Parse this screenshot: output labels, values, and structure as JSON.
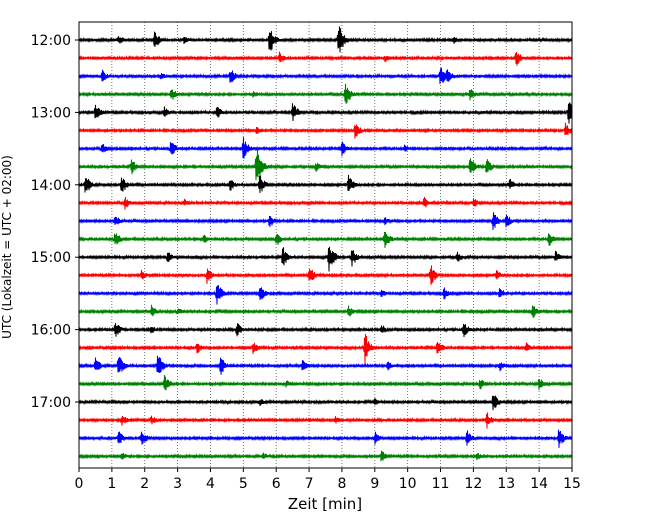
{
  "chart_data": {
    "type": "line",
    "title": "",
    "xlabel": "Zeit  [min]",
    "ylabel": "UTC (Lokalzeit = UTC + 02:00)",
    "xlim": [
      0,
      15
    ],
    "x_ticks": [
      "0",
      "1",
      "2",
      "3",
      "4",
      "5",
      "6",
      "7",
      "8",
      "9",
      "10",
      "11",
      "12",
      "13",
      "14",
      "15"
    ],
    "y_ticks": [
      {
        "label": "12:00",
        "row": 0
      },
      {
        "label": "13:00",
        "row": 4
      },
      {
        "label": "14:00",
        "row": 8
      },
      {
        "label": "15:00",
        "row": 12
      },
      {
        "label": "16:00",
        "row": 16
      },
      {
        "label": "17:00",
        "row": 20
      }
    ],
    "grid": "vertical dotted",
    "row_colors": [
      "#000000",
      "#ff0000",
      "#0000ff",
      "#008000"
    ],
    "rows": [
      {
        "start": "12:00",
        "events": [
          [
            2.3,
            0.45
          ],
          [
            5.8,
            0.7
          ],
          [
            7.9,
            0.75
          ],
          [
            1.2,
            0.25
          ],
          [
            3.2,
            0.2
          ],
          [
            11.4,
            0.2
          ]
        ]
      },
      {
        "start": "12:15",
        "events": [
          [
            6.1,
            0.3
          ],
          [
            13.3,
            0.4
          ],
          [
            9.3,
            0.2
          ]
        ]
      },
      {
        "start": "12:30",
        "events": [
          [
            0.7,
            0.3
          ],
          [
            4.6,
            0.4
          ],
          [
            11.0,
            0.55
          ],
          [
            11.2,
            0.4
          ],
          [
            2.5,
            0.2
          ]
        ]
      },
      {
        "start": "12:45",
        "events": [
          [
            2.8,
            0.35
          ],
          [
            8.1,
            0.6
          ],
          [
            11.9,
            0.3
          ],
          [
            5.3,
            0.2
          ]
        ]
      },
      {
        "start": "13:00",
        "events": [
          [
            0.5,
            0.4
          ],
          [
            6.5,
            0.45
          ],
          [
            14.9,
            0.6
          ],
          [
            4.2,
            0.3
          ],
          [
            2.6,
            0.25
          ]
        ]
      },
      {
        "start": "13:15",
        "events": [
          [
            8.4,
            0.4
          ],
          [
            14.8,
            0.35
          ],
          [
            5.4,
            0.2
          ]
        ]
      },
      {
        "start": "13:30",
        "events": [
          [
            0.7,
            0.3
          ],
          [
            2.8,
            0.4
          ],
          [
            5.0,
            0.5
          ],
          [
            8.0,
            0.35
          ],
          [
            9.9,
            0.2
          ]
        ]
      },
      {
        "start": "13:45",
        "events": [
          [
            1.6,
            0.35
          ],
          [
            5.4,
            1.0
          ],
          [
            11.9,
            0.5
          ],
          [
            12.4,
            0.4
          ],
          [
            7.2,
            0.25
          ]
        ]
      },
      {
        "start": "14:00",
        "events": [
          [
            0.2,
            0.5
          ],
          [
            1.3,
            0.45
          ],
          [
            5.5,
            0.5
          ],
          [
            8.2,
            0.45
          ],
          [
            4.6,
            0.3
          ],
          [
            13.1,
            0.3
          ]
        ]
      },
      {
        "start": "14:15",
        "events": [
          [
            1.4,
            0.3
          ],
          [
            10.5,
            0.3
          ],
          [
            12.0,
            0.25
          ],
          [
            3.2,
            0.2
          ]
        ]
      },
      {
        "start": "14:30",
        "events": [
          [
            1.1,
            0.3
          ],
          [
            5.8,
            0.35
          ],
          [
            12.6,
            0.45
          ],
          [
            13.0,
            0.35
          ],
          [
            9.3,
            0.2
          ]
        ]
      },
      {
        "start": "14:45",
        "events": [
          [
            1.1,
            0.4
          ],
          [
            6.0,
            0.35
          ],
          [
            9.3,
            0.45
          ],
          [
            14.3,
            0.35
          ],
          [
            3.8,
            0.2
          ]
        ]
      },
      {
        "start": "15:00",
        "events": [
          [
            6.2,
            0.5
          ],
          [
            7.6,
            0.75
          ],
          [
            8.3,
            0.45
          ],
          [
            2.7,
            0.3
          ],
          [
            11.5,
            0.3
          ],
          [
            14.5,
            0.3
          ]
        ]
      },
      {
        "start": "15:15",
        "events": [
          [
            3.9,
            0.4
          ],
          [
            7.0,
            0.45
          ],
          [
            10.7,
            0.5
          ],
          [
            1.9,
            0.25
          ],
          [
            12.7,
            0.25
          ]
        ]
      },
      {
        "start": "15:30",
        "events": [
          [
            4.2,
            0.55
          ],
          [
            5.5,
            0.4
          ],
          [
            11.1,
            0.3
          ],
          [
            12.8,
            0.3
          ],
          [
            9.2,
            0.2
          ]
        ]
      },
      {
        "start": "15:45",
        "events": [
          [
            2.2,
            0.3
          ],
          [
            8.2,
            0.3
          ],
          [
            13.8,
            0.35
          ],
          [
            3.0,
            0.2
          ]
        ]
      },
      {
        "start": "16:00",
        "events": [
          [
            1.1,
            0.4
          ],
          [
            4.8,
            0.35
          ],
          [
            11.7,
            0.35
          ],
          [
            9.2,
            0.25
          ],
          [
            2.2,
            0.2
          ]
        ]
      },
      {
        "start": "16:15",
        "events": [
          [
            8.7,
            0.7
          ],
          [
            10.9,
            0.4
          ],
          [
            3.6,
            0.3
          ],
          [
            5.3,
            0.3
          ],
          [
            13.6,
            0.25
          ]
        ]
      },
      {
        "start": "16:30",
        "events": [
          [
            0.5,
            0.45
          ],
          [
            1.2,
            0.55
          ],
          [
            2.4,
            0.6
          ],
          [
            4.3,
            0.45
          ],
          [
            6.8,
            0.3
          ],
          [
            9.4,
            0.25
          ],
          [
            12.8,
            0.25
          ]
        ]
      },
      {
        "start": "16:45",
        "events": [
          [
            2.6,
            0.45
          ],
          [
            12.2,
            0.3
          ],
          [
            14.0,
            0.3
          ],
          [
            6.3,
            0.2
          ]
        ]
      },
      {
        "start": "17:00",
        "events": [
          [
            12.6,
            0.45
          ],
          [
            5.5,
            0.2
          ],
          [
            9.0,
            0.2
          ]
        ]
      },
      {
        "start": "17:15",
        "events": [
          [
            1.3,
            0.3
          ],
          [
            12.4,
            0.4
          ],
          [
            2.2,
            0.25
          ],
          [
            7.8,
            0.2
          ]
        ]
      },
      {
        "start": "17:30",
        "events": [
          [
            1.2,
            0.35
          ],
          [
            1.9,
            0.4
          ],
          [
            9.0,
            0.35
          ],
          [
            11.8,
            0.4
          ],
          [
            14.6,
            0.45
          ]
        ]
      },
      {
        "start": "17:45",
        "events": [
          [
            9.2,
            0.3
          ],
          [
            1.3,
            0.2
          ],
          [
            5.6,
            0.2
          ],
          [
            12.1,
            0.2
          ]
        ]
      }
    ]
  }
}
